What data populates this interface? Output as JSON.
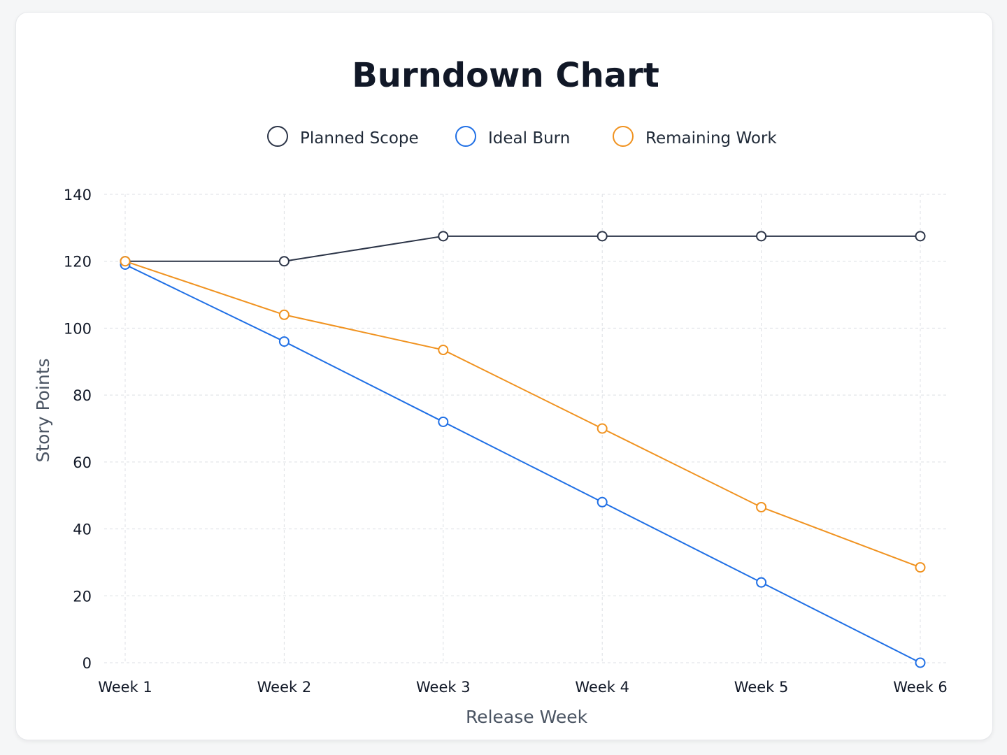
{
  "chart_data": {
    "type": "line",
    "title": "Burndown Chart",
    "xlabel": "Release Week",
    "ylabel": "Story Points",
    "categories": [
      "Week 1",
      "Week 2",
      "Week 3",
      "Week 4",
      "Week 5",
      "Week 6"
    ],
    "yticks": [
      "0",
      "20",
      "40",
      "60",
      "80",
      "100",
      "120",
      "140"
    ],
    "ylim": [
      0,
      140
    ],
    "grid": true,
    "legend_position": "top-center",
    "series": [
      {
        "name": "Planned Scope",
        "color": "#2b3447",
        "values": [
          120,
          120,
          127.5,
          127.5,
          127.5,
          127.5
        ]
      },
      {
        "name": "Ideal Burn",
        "color": "#1f6fe5",
        "values": [
          119,
          96,
          72,
          48,
          24,
          0
        ]
      },
      {
        "name": "Remaining Work",
        "color": "#f0921f",
        "values": [
          120,
          104,
          93.5,
          70,
          46.5,
          28.5
        ]
      }
    ]
  }
}
